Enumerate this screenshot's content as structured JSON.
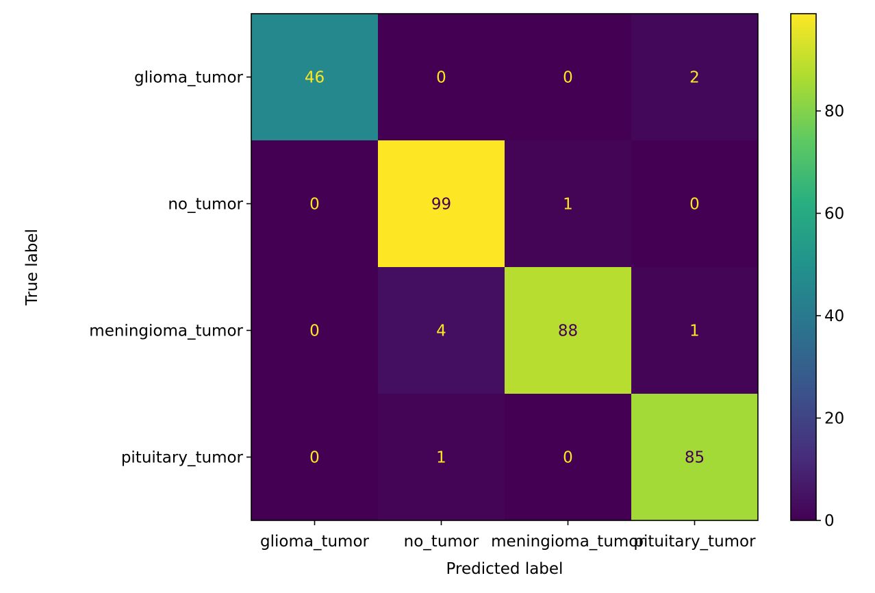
{
  "chart_data": {
    "type": "heatmap",
    "row_categories": [
      "glioma_tumor",
      "no_tumor",
      "meningioma_tumor",
      "pituitary_tumor"
    ],
    "col_categories": [
      "glioma_tumor",
      "no_tumor",
      "meningioma_tumor",
      "pituitary_tumor"
    ],
    "values": [
      [
        46,
        0,
        0,
        2
      ],
      [
        0,
        99,
        1,
        0
      ],
      [
        0,
        4,
        88,
        1
      ],
      [
        0,
        1,
        0,
        85
      ]
    ],
    "xlabel": "Predicted label",
    "ylabel": "True label",
    "colormap": "viridis",
    "colorbar": {
      "ticks": [
        0,
        20,
        40,
        60,
        80
      ],
      "range": [
        0,
        99
      ]
    }
  }
}
